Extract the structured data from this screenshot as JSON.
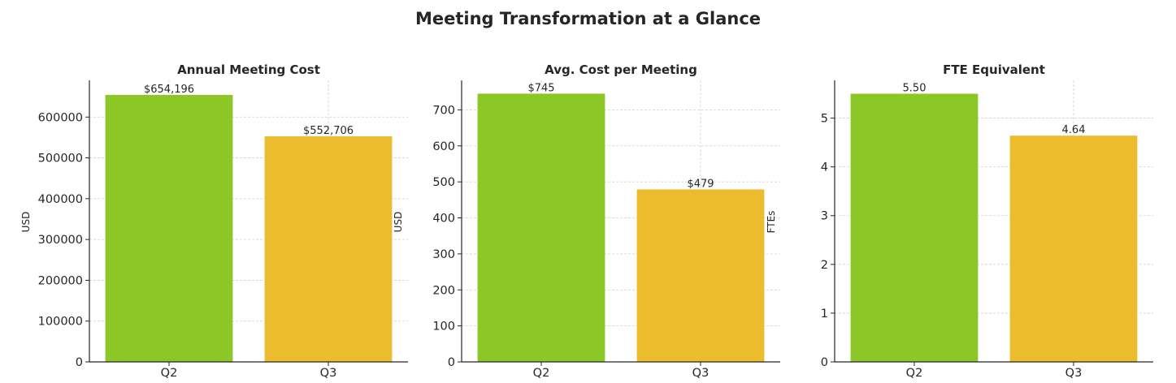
{
  "title": "Meeting Transformation at a Glance",
  "chart_data": [
    {
      "type": "bar",
      "title": "Annual Meeting Cost",
      "xlabel": "",
      "ylabel": "USD",
      "categories": [
        "Q2",
        "Q3"
      ],
      "values": [
        654196,
        552706
      ],
      "value_labels": [
        "$654,196",
        "$552,706"
      ],
      "colors": [
        "#8BC727",
        "#EBBC2E"
      ],
      "ylim": [
        0,
        690000
      ],
      "yticks": [
        0,
        100000,
        200000,
        300000,
        400000,
        500000,
        600000
      ],
      "ytick_labels": [
        "0",
        "100000",
        "200000",
        "300000",
        "400000",
        "500000",
        "600000"
      ],
      "grid": true
    },
    {
      "type": "bar",
      "title": "Avg. Cost per Meeting",
      "xlabel": "",
      "ylabel": "USD",
      "categories": [
        "Q2",
        "Q3"
      ],
      "values": [
        745,
        479
      ],
      "value_labels": [
        "$745",
        "$479"
      ],
      "colors": [
        "#8BC727",
        "#EBBC2E"
      ],
      "ylim": [
        0,
        782
      ],
      "yticks": [
        0,
        100,
        200,
        300,
        400,
        500,
        600,
        700
      ],
      "ytick_labels": [
        "0",
        "100",
        "200",
        "300",
        "400",
        "500",
        "600",
        "700"
      ],
      "grid": true
    },
    {
      "type": "bar",
      "title": "FTE Equivalent",
      "xlabel": "",
      "ylabel": "FTEs",
      "categories": [
        "Q2",
        "Q3"
      ],
      "values": [
        5.5,
        4.64
      ],
      "value_labels": [
        "5.50",
        "4.64"
      ],
      "colors": [
        "#8BC727",
        "#EBBC2E"
      ],
      "ylim": [
        0,
        5.775
      ],
      "yticks": [
        0,
        1,
        2,
        3,
        4,
        5
      ],
      "ytick_labels": [
        "0",
        "1",
        "2",
        "3",
        "4",
        "5"
      ],
      "grid": true
    }
  ]
}
